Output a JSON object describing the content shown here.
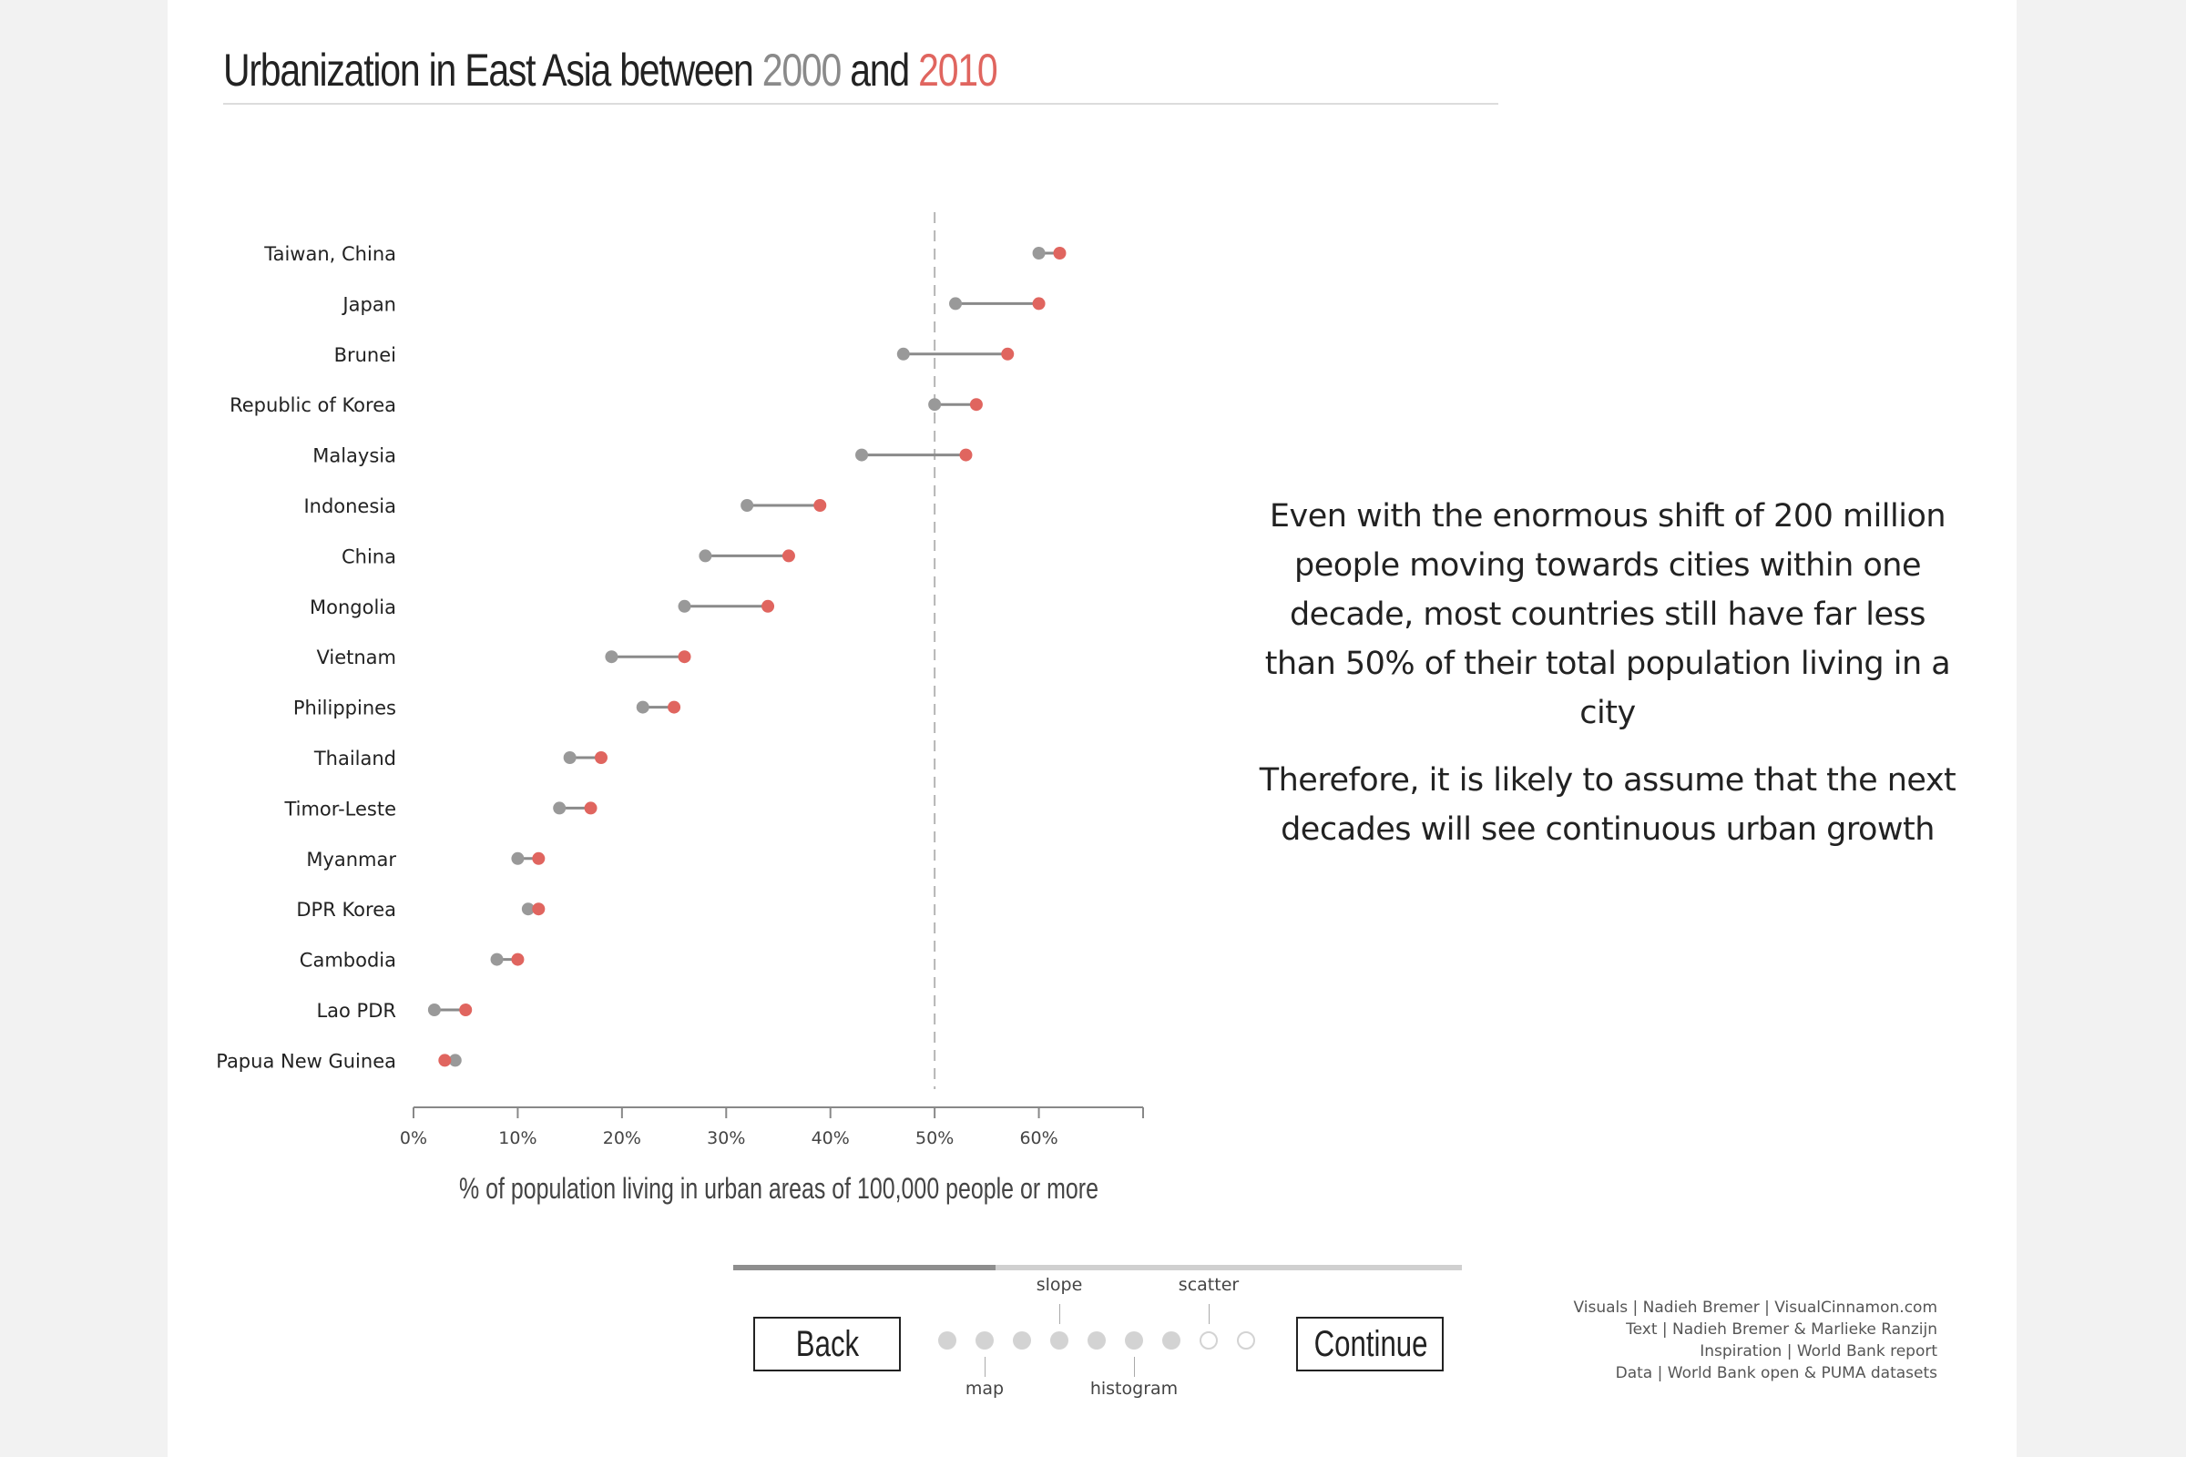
{
  "title": {
    "prefix": "Urbanization in East Asia between ",
    "year1": "2000",
    "middle": " and ",
    "year2": "2010"
  },
  "colors": {
    "year1": "#999999",
    "year2": "#e0655f",
    "connector": "#8a8a8a",
    "reference_line": "#b5b5b5"
  },
  "chart_data": {
    "type": "dumbbell",
    "title": "Urbanization in East Asia between 2000 and 2010",
    "xlabel": "% of population living in urban areas of 100,000 people or more",
    "ylabel": "",
    "xlim": [
      0,
      70
    ],
    "x_ticks": [
      "0%",
      "10%",
      "20%",
      "30%",
      "40%",
      "50%",
      "60%"
    ],
    "x_tick_values": [
      0,
      10,
      20,
      30,
      40,
      50,
      60
    ],
    "reference_line": 50,
    "grid": false,
    "series": [
      {
        "name": "2000",
        "color": "#999999"
      },
      {
        "name": "2010",
        "color": "#e0655f"
      }
    ],
    "categories": [
      "Taiwan, China",
      "Japan",
      "Brunei",
      "Republic of Korea",
      "Malaysia",
      "Indonesia",
      "China",
      "Mongolia",
      "Vietnam",
      "Philippines",
      "Thailand",
      "Timor-Leste",
      "Myanmar",
      "DPR Korea",
      "Cambodia",
      "Lao PDR",
      "Papua New Guinea"
    ],
    "values_2000": [
      60,
      52,
      47,
      50,
      43,
      32,
      28,
      26,
      19,
      22,
      15,
      14,
      10,
      11,
      8,
      2,
      4
    ],
    "values_2010": [
      62,
      60,
      57,
      54,
      53,
      39,
      36,
      34,
      26,
      25,
      18,
      17,
      12,
      12,
      10,
      5,
      3
    ]
  },
  "narrative": {
    "p1": "Even with the enormous shift of 200 million people moving towards cities within one decade, most countries still have far less than 50% of their total population living in a city",
    "p2": "Therefore, it is likely to assume that the next decades will see continuous urban growth"
  },
  "navigation": {
    "back_label": "Back",
    "continue_label": "Continue",
    "progress": 0.36,
    "steps": [
      {
        "state": "filled",
        "label": ""
      },
      {
        "state": "filled",
        "label": "map",
        "label_pos": "below"
      },
      {
        "state": "filled",
        "label": ""
      },
      {
        "state": "filled",
        "label": "slope",
        "label_pos": "above"
      },
      {
        "state": "filled",
        "label": ""
      },
      {
        "state": "filled",
        "label": "histogram",
        "label_pos": "below"
      },
      {
        "state": "filled",
        "label": ""
      },
      {
        "state": "empty",
        "label": "scatter",
        "label_pos": "above"
      },
      {
        "state": "empty",
        "label": ""
      }
    ]
  },
  "credits": [
    "Visuals | Nadieh Bremer | VisualCinnamon.com",
    "Text | Nadieh Bremer & Marlieke Ranzijn",
    "Inspiration | World Bank report",
    "Data | World Bank open & PUMA datasets"
  ]
}
